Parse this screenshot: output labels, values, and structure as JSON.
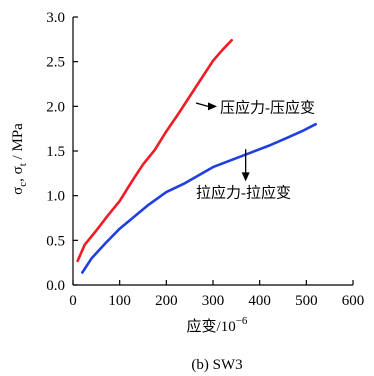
{
  "chart_data": {
    "type": "line",
    "xlabel": "应变/10",
    "xlabel_exponent": "−6",
    "ylabel": "σ",
    "ylabel_sub_c": "c",
    "ylabel_sep": ", σ",
    "ylabel_sub_t": "t",
    "ylabel_unit": " / MPa",
    "caption": "(b) SW3",
    "xlim": [
      0,
      600
    ],
    "ylim": [
      0,
      3.0
    ],
    "x_ticks": [
      "0",
      "100",
      "200",
      "300",
      "400",
      "500",
      "600"
    ],
    "y_ticks": [
      "0.0",
      "0.5",
      "1.0",
      "1.5",
      "2.0",
      "2.5",
      "3.0"
    ],
    "x_tick_values": [
      0,
      100,
      200,
      300,
      400,
      500,
      600
    ],
    "y_tick_values": [
      0,
      0.5,
      1.0,
      1.5,
      2.0,
      2.5,
      3.0
    ],
    "grid": false,
    "series": [
      {
        "name": "压应力-压应变",
        "color": "#ee1c25",
        "x": [
          10,
          25,
          50,
          75,
          100,
          125,
          150,
          175,
          200,
          225,
          250,
          275,
          300,
          320,
          340
        ],
        "y": [
          0.27,
          0.45,
          0.61,
          0.78,
          0.94,
          1.15,
          1.35,
          1.51,
          1.72,
          1.91,
          2.11,
          2.31,
          2.51,
          2.63,
          2.74
        ]
      },
      {
        "name": "拉应力-拉应变",
        "color": "#1f3fe0",
        "x": [
          20,
          40,
          70,
          100,
          130,
          160,
          200,
          240,
          270,
          300,
          340,
          380,
          420,
          460,
          490,
          520
        ],
        "y": [
          0.14,
          0.3,
          0.47,
          0.63,
          0.76,
          0.89,
          1.04,
          1.14,
          1.23,
          1.32,
          1.4,
          1.48,
          1.56,
          1.65,
          1.72,
          1.8
        ]
      }
    ],
    "annotations": [
      {
        "text": "压应力-压应变",
        "series": 0,
        "arrow_from": [
          315,
          2.0
        ],
        "arrow_to": [
          255,
          2.06
        ]
      },
      {
        "text": "拉应力-拉应变",
        "series": 1,
        "arrow_from": [
          400,
          1.55
        ],
        "arrow_to": [
          400,
          1.12
        ]
      }
    ]
  }
}
